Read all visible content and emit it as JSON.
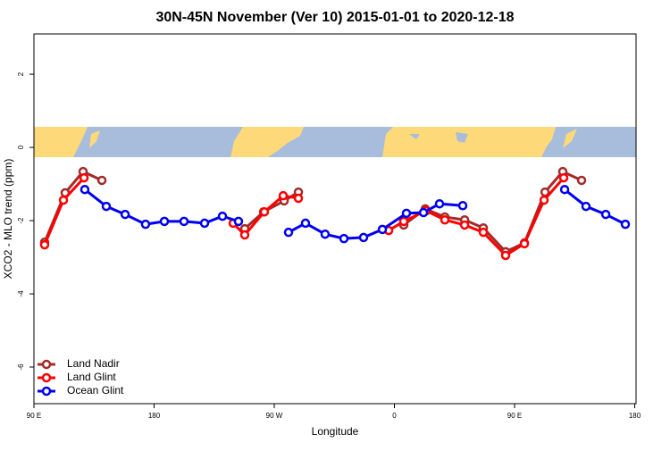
{
  "chart_data": {
    "type": "line",
    "title": "30N-45N November (Ver 10)   2015-01-01 to 2020-12-18",
    "x_label": "Longitude",
    "y_label": "XCO2 - MLO trend (ppm)",
    "xlim": [
      90,
      541
    ],
    "xticks": [
      {
        "value": 90,
        "label": "90 E"
      },
      {
        "value": 180,
        "label": "180"
      },
      {
        "value": 270,
        "label": "90 W"
      },
      {
        "value": 360,
        "label": "0"
      },
      {
        "value": 450,
        "label": "90 E"
      },
      {
        "value": 540,
        "label": "180"
      }
    ],
    "ylim": [
      -7,
      3.1
    ],
    "yticks": [
      2,
      0,
      -2,
      -4,
      -6
    ],
    "legend": "bottom-left",
    "series": [
      {
        "name": "Land Nadir",
        "color": "#a52a2a",
        "x": [
          98,
          113.4,
          126.8,
          140.9,
          null,
          247.9,
          262,
          277.4,
          288.1,
          null,
          367,
          383.1,
          397.8,
          412.6,
          426.6,
          443.3,
          457.4,
          472.8,
          486.1,
          500.2
        ],
        "values": [
          -2.59,
          -1.24,
          -0.66,
          -0.9,
          null,
          -2.22,
          -1.76,
          -1.46,
          -1.22,
          null,
          -2.12,
          -1.68,
          -1.9,
          -1.98,
          -2.2,
          -2.85,
          -2.61,
          -1.22,
          -0.66,
          -0.9
        ]
      },
      {
        "name": "Land Glint",
        "color": "#ff0000",
        "x": [
          98,
          112.1,
          127.5,
          null,
          239.2,
          247.9,
          262.6,
          276.7,
          288.1,
          null,
          355.7,
          367,
          383.7,
          397.8,
          412.6,
          426.6,
          443.3,
          457.4,
          472.1,
          486.8
        ],
        "values": [
          -2.66,
          -1.44,
          -0.83,
          null,
          -2.07,
          -2.39,
          -1.76,
          -1.32,
          -1.39,
          null,
          -2.27,
          -2.02,
          -1.73,
          -1.98,
          -2.12,
          -2.32,
          -2.95,
          -2.63,
          -1.44,
          -0.83
        ]
      },
      {
        "name": "Ocean Glint",
        "color": "#0000ee",
        "x": [
          128.1,
          144.2,
          158.3,
          173.6,
          187.7,
          202.4,
          217.8,
          231.2,
          243.2,
          null,
          280.7,
          293.4,
          308.1,
          322.2,
          336.9,
          351,
          369,
          381.8,
          393.8,
          411.2,
          null,
          487.5,
          503.5,
          518.3,
          533
        ],
        "values": [
          -1.15,
          -1.61,
          -1.83,
          -2.1,
          -2.02,
          -2.02,
          -2.07,
          -1.88,
          -2.02,
          null,
          -2.32,
          -2.07,
          -2.37,
          -2.49,
          -2.46,
          -2.24,
          -1.8,
          -1.78,
          -1.54,
          -1.59,
          null,
          -1.15,
          -1.61,
          -1.83,
          -2.1
        ]
      }
    ]
  }
}
